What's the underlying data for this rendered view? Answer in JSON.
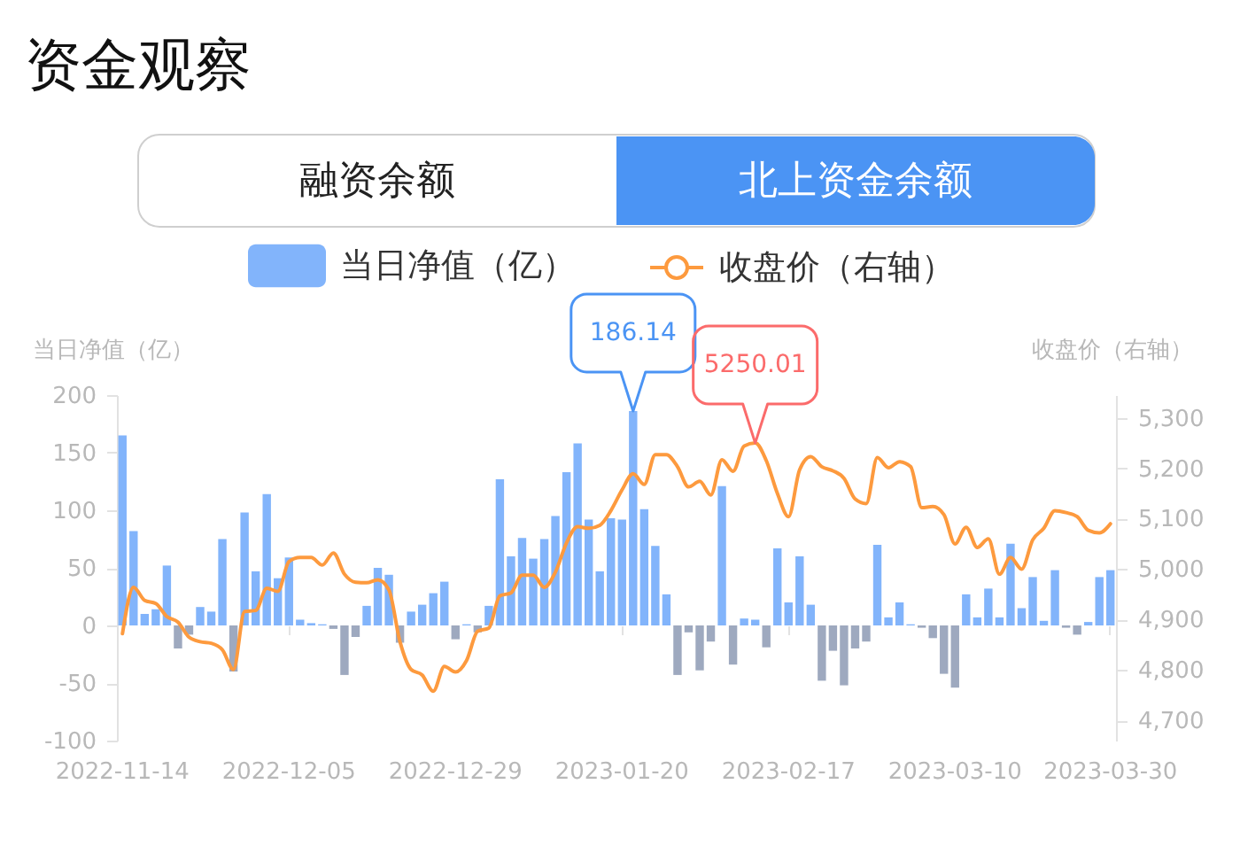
{
  "chart_data": {
    "type": "bar",
    "title": "资金观察",
    "annotations": [
      "融资余额",
      "北上资金余额"
    ],
    "ylabel": "当日净值（亿）",
    "y2label": "收盘价（右轴）",
    "categories": [
      "2022-11-14",
      null,
      null,
      null,
      null,
      null,
      null,
      null,
      null,
      null,
      null,
      null,
      null,
      null,
      null,
      "2022-12-05",
      null,
      null,
      null,
      null,
      null,
      null,
      null,
      null,
      null,
      null,
      null,
      null,
      null,
      null,
      "2022-12-29",
      null,
      null,
      null,
      null,
      null,
      null,
      null,
      null,
      null,
      null,
      null,
      null,
      null,
      null,
      "2023-01-20",
      null,
      null,
      null,
      null,
      null,
      null,
      null,
      null,
      null,
      null,
      null,
      null,
      null,
      null,
      "2023-02-17",
      null,
      null,
      null,
      null,
      null,
      null,
      null,
      null,
      null,
      null,
      null,
      null,
      null,
      null,
      "2023-03-10",
      null,
      null,
      null,
      null,
      null,
      null,
      null,
      null,
      null,
      null,
      null,
      null,
      null,
      "2023-03-30"
    ],
    "series": [
      {
        "name": "当日净值（亿）",
        "color": "#82b4fb",
        "colors": [
          "#82b4fb",
          "#82b4fb",
          "#82b4fb",
          "#82b4fb",
          "#82b4fb",
          "#9ea9bf",
          "#9ea9bf",
          "#82b4fb",
          "#82b4fb",
          "#82b4fb",
          "#9ea9bf",
          "#82b4fb",
          "#82b4fb",
          "#82b4fb",
          "#82b4fb",
          "#82b4fb",
          "#82b4fb",
          "#82b4fb",
          "#82b4fb",
          "#9ea9bf",
          "#9ea9bf",
          "#9ea9bf",
          "#82b4fb",
          "#82b4fb",
          "#82b4fb",
          "#9ea9bf",
          "#82b4fb",
          "#82b4fb",
          "#82b4fb",
          "#82b4fb",
          "#9ea9bf",
          "#82b4fb",
          "#9ea9bf",
          "#82b4fb",
          "#82b4fb",
          "#82b4fb",
          "#82b4fb",
          "#82b4fb",
          "#82b4fb",
          "#82b4fb",
          "#82b4fb",
          "#82b4fb",
          "#82b4fb",
          "#82b4fb",
          "#82b4fb",
          "#82b4fb",
          "#82b4fb",
          "#82b4fb",
          "#82b4fb",
          "#82b4fb",
          "#9ea9bf",
          "#9ea9bf",
          "#9ea9bf",
          "#9ea9bf",
          "#82b4fb",
          "#9ea9bf",
          "#82b4fb",
          "#82b4fb",
          "#9ea9bf",
          "#82b4fb",
          "#82b4fb",
          "#82b4fb",
          "#82b4fb",
          "#9ea9bf",
          "#9ea9bf",
          "#9ea9bf",
          "#9ea9bf",
          "#9ea9bf",
          "#82b4fb",
          "#82b4fb",
          "#82b4fb",
          "#82b4fb",
          "#9ea9bf",
          "#9ea9bf",
          "#9ea9bf",
          "#9ea9bf",
          "#82b4fb",
          "#82b4fb",
          "#82b4fb",
          "#82b4fb",
          "#82b4fb",
          "#82b4fb",
          "#82b4fb",
          "#82b4fb",
          "#82b4fb",
          "#9ea9bf",
          "#9ea9bf",
          "#82b4fb",
          "#82b4fb",
          "#82b4fb"
        ],
        "values": [
          165,
          82,
          10,
          14,
          52,
          -20,
          -8,
          16,
          12,
          75,
          -40,
          98,
          47,
          114,
          41,
          59,
          5,
          2,
          1,
          -3,
          -43,
          -10,
          17,
          50,
          44,
          -15,
          12,
          18,
          28,
          38,
          -12,
          1,
          -6,
          17,
          127,
          60,
          76,
          58,
          75,
          95,
          133,
          158,
          92,
          47,
          93,
          92,
          186.14,
          101,
          69,
          27,
          -43,
          -6,
          -39,
          -14,
          121,
          -34,
          6,
          5,
          -19,
          67,
          20,
          60,
          18,
          -48,
          -22,
          -52,
          -20,
          -14,
          70,
          7,
          20,
          1,
          -2,
          -11,
          -42,
          -54,
          27,
          7,
          32,
          7,
          71,
          15,
          42,
          4,
          48,
          -2,
          -8,
          3,
          42,
          48
        ],
        "value_labels": [
          null,
          null,
          null,
          null,
          null,
          null,
          null,
          null,
          null,
          null,
          null,
          null,
          null,
          null,
          null,
          null,
          null,
          null,
          null,
          null,
          null,
          null,
          null,
          null,
          null,
          null,
          null,
          null,
          null,
          null,
          null,
          null,
          null,
          null,
          null,
          null,
          null,
          null,
          null,
          null,
          null,
          null,
          null,
          null,
          null,
          null,
          "186.14",
          null,
          null,
          null,
          null,
          null,
          null,
          null,
          null,
          null,
          null,
          null,
          null,
          null,
          null,
          null,
          null,
          null,
          null,
          null,
          null,
          null,
          null,
          null,
          null,
          null,
          null,
          null,
          null,
          null,
          null,
          null,
          null,
          null,
          null,
          null,
          null,
          null,
          null,
          null,
          null,
          null,
          null,
          null
        ]
      },
      {
        "name": "收盘价（右轴）",
        "type": "line",
        "axis": "y2",
        "color": "#fd9a3e",
        "values": [
          4872,
          4964,
          4938,
          4932,
          4906,
          4895,
          4865,
          4856,
          4853,
          4840,
          4801,
          4916,
          4918,
          4962,
          4956,
          5015,
          5023,
          5023,
          5008,
          5032,
          4990,
          4974,
          4973,
          4979,
          4959,
          4856,
          4801,
          4790,
          4758,
          4807,
          4796,
          4819,
          4877,
          4883,
          4947,
          4953,
          4988,
          4988,
          4964,
          4994,
          5052,
          5084,
          5081,
          5087,
          5116,
          5157,
          5189,
          5168,
          5227,
          5227,
          5203,
          5163,
          5174,
          5147,
          5217,
          5194,
          5244,
          5250.01,
          5215,
          5150,
          5104,
          5197,
          5223,
          5203,
          5195,
          5180,
          5139,
          5130,
          5221,
          5201,
          5213,
          5203,
          5122,
          5124,
          5108,
          5050,
          5083,
          5043,
          5060,
          4990,
          5023,
          5000,
          5058,
          5081,
          5116,
          5112,
          5104,
          5077,
          5072,
          5090
        ],
        "value_labels": [
          null,
          null,
          null,
          null,
          null,
          null,
          null,
          null,
          null,
          null,
          null,
          null,
          null,
          null,
          null,
          null,
          null,
          null,
          null,
          null,
          null,
          null,
          null,
          null,
          null,
          null,
          null,
          null,
          null,
          null,
          null,
          null,
          null,
          null,
          null,
          null,
          null,
          null,
          null,
          null,
          null,
          null,
          null,
          null,
          null,
          null,
          null,
          null,
          null,
          null,
          null,
          null,
          null,
          null,
          null,
          null,
          null,
          "5250.01",
          null,
          null,
          null,
          null,
          null,
          null,
          null,
          null,
          null,
          null,
          null,
          null,
          null,
          null,
          null,
          null,
          null,
          null,
          null,
          null,
          null,
          null,
          null,
          null,
          null,
          null,
          null,
          null,
          null,
          null,
          null,
          null
        ]
      }
    ],
    "ylim": [
      -100,
      200
    ],
    "yticks": [
      200,
      150,
      100,
      50,
      0,
      -50,
      -100
    ],
    "y2lim": [
      4660,
      5345
    ],
    "y2ticks": [
      {
        "value": 5300,
        "label": "5,300"
      },
      {
        "value": 5200,
        "label": "5,200"
      },
      {
        "value": 5100,
        "label": "5,100"
      },
      {
        "value": 5000,
        "label": "5,000"
      },
      {
        "value": 4900,
        "label": "4,900"
      },
      {
        "value": 4800,
        "label": "4,800"
      },
      {
        "value": 4700,
        "label": "4,700"
      }
    ],
    "legend": "top",
    "grid": false
  }
}
